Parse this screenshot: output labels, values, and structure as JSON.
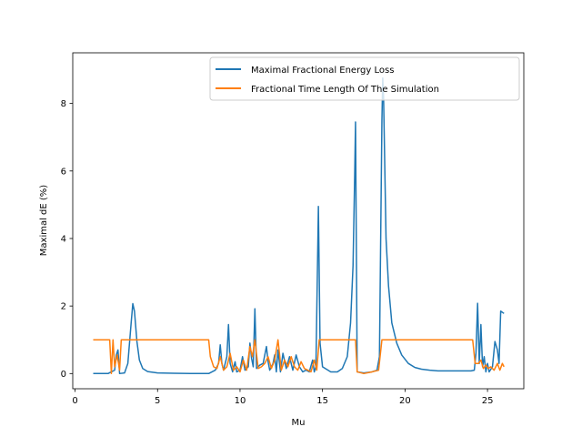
{
  "chart_data": {
    "type": "line",
    "xlabel": "Mu",
    "ylabel": "Maximal dE (%)",
    "xlim": [
      -0.14,
      27.2
    ],
    "ylim": [
      -0.45,
      9.5
    ],
    "xticks": [
      0,
      5,
      10,
      15,
      20,
      25
    ],
    "yticks": [
      0,
      2,
      4,
      6,
      8
    ],
    "grid": false,
    "legend_position": "top-right",
    "series": [
      {
        "name": "Maximal Fractional Energy Loss",
        "color": "#1f77b4",
        "points": [
          [
            1.1,
            0.0
          ],
          [
            2.0,
            0.0
          ],
          [
            2.2,
            0.05
          ],
          [
            2.4,
            0.1
          ],
          [
            2.5,
            0.55
          ],
          [
            2.6,
            0.7
          ],
          [
            2.7,
            0.0
          ],
          [
            3.0,
            0.02
          ],
          [
            3.2,
            0.3
          ],
          [
            3.4,
            1.5
          ],
          [
            3.5,
            2.07
          ],
          [
            3.6,
            1.85
          ],
          [
            3.75,
            0.95
          ],
          [
            3.9,
            0.4
          ],
          [
            4.1,
            0.15
          ],
          [
            4.4,
            0.06
          ],
          [
            5.0,
            0.02
          ],
          [
            6.0,
            0.01
          ],
          [
            7.0,
            0.0
          ],
          [
            8.1,
            0.0
          ],
          [
            8.3,
            0.05
          ],
          [
            8.5,
            0.1
          ],
          [
            8.7,
            0.3
          ],
          [
            8.8,
            0.85
          ],
          [
            8.9,
            0.3
          ],
          [
            9.0,
            0.1
          ],
          [
            9.2,
            0.5
          ],
          [
            9.3,
            1.45
          ],
          [
            9.4,
            0.3
          ],
          [
            9.55,
            0.05
          ],
          [
            9.7,
            0.35
          ],
          [
            9.8,
            0.05
          ],
          [
            10.0,
            0.1
          ],
          [
            10.15,
            0.5
          ],
          [
            10.3,
            0.1
          ],
          [
            10.5,
            0.2
          ],
          [
            10.6,
            0.9
          ],
          [
            10.7,
            0.45
          ],
          [
            10.8,
            0.2
          ],
          [
            10.9,
            1.92
          ],
          [
            11.0,
            0.15
          ],
          [
            11.2,
            0.25
          ],
          [
            11.4,
            0.3
          ],
          [
            11.6,
            0.8
          ],
          [
            11.7,
            0.35
          ],
          [
            11.8,
            0.1
          ],
          [
            12.0,
            0.3
          ],
          [
            12.1,
            0.55
          ],
          [
            12.2,
            0.05
          ],
          [
            12.3,
            0.7
          ],
          [
            12.45,
            0.05
          ],
          [
            12.6,
            0.6
          ],
          [
            12.8,
            0.15
          ],
          [
            13.0,
            0.5
          ],
          [
            13.2,
            0.1
          ],
          [
            13.4,
            0.55
          ],
          [
            13.6,
            0.2
          ],
          [
            13.8,
            0.05
          ],
          [
            14.0,
            0.1
          ],
          [
            14.2,
            0.05
          ],
          [
            14.4,
            0.4
          ],
          [
            14.5,
            0.05
          ],
          [
            14.6,
            0.2
          ],
          [
            14.75,
            4.95
          ],
          [
            14.85,
            0.9
          ],
          [
            15.0,
            0.2
          ],
          [
            15.5,
            0.05
          ],
          [
            15.9,
            0.05
          ],
          [
            16.2,
            0.15
          ],
          [
            16.5,
            0.5
          ],
          [
            16.7,
            1.5
          ],
          [
            16.85,
            3.2
          ],
          [
            16.95,
            5.9
          ],
          [
            17.0,
            7.45
          ],
          [
            17.1,
            0.05
          ],
          [
            17.5,
            0.02
          ],
          [
            18.0,
            0.05
          ],
          [
            18.3,
            0.1
          ],
          [
            18.45,
            0.5
          ],
          [
            18.6,
            7.5
          ],
          [
            18.65,
            8.75
          ],
          [
            18.7,
            8.2
          ],
          [
            18.85,
            4.0
          ],
          [
            19.0,
            2.6
          ],
          [
            19.2,
            1.5
          ],
          [
            19.5,
            0.9
          ],
          [
            19.8,
            0.55
          ],
          [
            20.2,
            0.3
          ],
          [
            20.6,
            0.18
          ],
          [
            21.0,
            0.13
          ],
          [
            21.5,
            0.1
          ],
          [
            22.0,
            0.08
          ],
          [
            23.0,
            0.08
          ],
          [
            24.0,
            0.08
          ],
          [
            24.2,
            0.1
          ],
          [
            24.3,
            0.6
          ],
          [
            24.4,
            2.08
          ],
          [
            24.5,
            0.3
          ],
          [
            24.6,
            1.45
          ],
          [
            24.7,
            0.2
          ],
          [
            24.8,
            0.5
          ],
          [
            24.9,
            0.05
          ],
          [
            25.0,
            0.3
          ],
          [
            25.1,
            0.05
          ],
          [
            25.3,
            0.2
          ],
          [
            25.45,
            0.95
          ],
          [
            25.6,
            0.7
          ],
          [
            25.7,
            0.3
          ],
          [
            25.8,
            1.85
          ],
          [
            26.0,
            1.78
          ]
        ]
      },
      {
        "name": "Fractional Time Length Of The Simulation",
        "color": "#ff7f0e",
        "points": [
          [
            1.1,
            1.0
          ],
          [
            2.1,
            1.0
          ],
          [
            2.2,
            0.0
          ],
          [
            2.3,
            1.0
          ],
          [
            2.4,
            0.2
          ],
          [
            2.55,
            0.55
          ],
          [
            2.7,
            0.1
          ],
          [
            2.8,
            1.0
          ],
          [
            4.0,
            1.0
          ],
          [
            6.0,
            1.0
          ],
          [
            8.1,
            1.0
          ],
          [
            8.2,
            0.5
          ],
          [
            8.4,
            0.2
          ],
          [
            8.6,
            0.15
          ],
          [
            8.8,
            0.5
          ],
          [
            9.0,
            0.1
          ],
          [
            9.2,
            0.2
          ],
          [
            9.4,
            0.6
          ],
          [
            9.6,
            0.1
          ],
          [
            9.8,
            0.2
          ],
          [
            10.0,
            0.05
          ],
          [
            10.2,
            0.4
          ],
          [
            10.4,
            0.1
          ],
          [
            10.6,
            0.8
          ],
          [
            10.75,
            0.5
          ],
          [
            10.9,
            1.0
          ],
          [
            11.1,
            0.15
          ],
          [
            11.3,
            0.2
          ],
          [
            11.5,
            0.3
          ],
          [
            11.7,
            0.5
          ],
          [
            11.9,
            0.15
          ],
          [
            12.1,
            0.4
          ],
          [
            12.3,
            1.0
          ],
          [
            12.5,
            0.1
          ],
          [
            12.7,
            0.4
          ],
          [
            12.9,
            0.2
          ],
          [
            13.1,
            0.5
          ],
          [
            13.3,
            0.2
          ],
          [
            13.5,
            0.1
          ],
          [
            13.7,
            0.35
          ],
          [
            13.9,
            0.15
          ],
          [
            14.1,
            0.1
          ],
          [
            14.3,
            0.05
          ],
          [
            14.5,
            0.4
          ],
          [
            14.65,
            0.1
          ],
          [
            14.8,
            1.0
          ],
          [
            15.5,
            1.0
          ],
          [
            16.5,
            1.0
          ],
          [
            17.0,
            1.0
          ],
          [
            17.1,
            0.05
          ],
          [
            17.5,
            0.0
          ],
          [
            18.0,
            0.05
          ],
          [
            18.4,
            0.1
          ],
          [
            18.6,
            1.0
          ],
          [
            19.5,
            1.0
          ],
          [
            21.0,
            1.0
          ],
          [
            22.5,
            1.0
          ],
          [
            24.1,
            1.0
          ],
          [
            24.25,
            0.3
          ],
          [
            24.45,
            0.3
          ],
          [
            24.6,
            0.4
          ],
          [
            24.75,
            0.15
          ],
          [
            24.9,
            0.25
          ],
          [
            25.05,
            0.15
          ],
          [
            25.2,
            0.2
          ],
          [
            25.4,
            0.1
          ],
          [
            25.6,
            0.3
          ],
          [
            25.75,
            0.1
          ],
          [
            25.9,
            0.3
          ],
          [
            26.0,
            0.2
          ]
        ]
      }
    ]
  }
}
